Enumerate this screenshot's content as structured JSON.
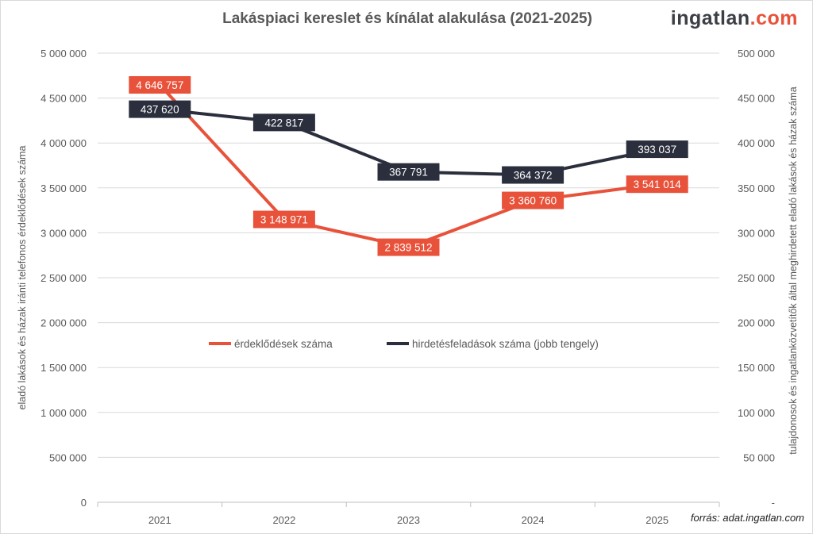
{
  "logo": {
    "main": "ingatlan",
    "accent": ".com"
  },
  "source": "forrás: adat.ingatlan.com",
  "chart_data": {
    "type": "line",
    "title": "Lakáspiaci kereslet és kínálat alakulása (2021-2025)",
    "categories": [
      "2021",
      "2022",
      "2023",
      "2024",
      "2025"
    ],
    "ylabel": "eladó lakások  és házak iránti telefonos érdeklődések száma",
    "y2label": "tulajdonosok és ingatlanközvetítők által meghirdetett eladó lakások és házak száma",
    "ylim": [
      0,
      5000000
    ],
    "y2lim": [
      0,
      500000
    ],
    "yticks": [
      "0",
      "500 000",
      "1 000 000",
      "1 500 000",
      "2 000 000",
      "2 500 000",
      "3 000 000",
      "3 500 000",
      "4 000 000",
      "4 500 000",
      "5 000 000"
    ],
    "y2ticks": [
      "-",
      "50 000",
      "100 000",
      "150 000",
      "200 000",
      "250 000",
      "300 000",
      "350 000",
      "400 000",
      "450 000",
      "500 000"
    ],
    "grid": true,
    "legend": "center",
    "series": [
      {
        "name": "érdeklődések száma",
        "axis": "left",
        "color": "#e8523a",
        "values": [
          4646757,
          3148971,
          2839512,
          3360760,
          3541014
        ],
        "labels": [
          "4 646 757",
          "3 148 971",
          "2 839 512",
          "3 360 760",
          "3 541 014"
        ]
      },
      {
        "name": "hirdetésfeladások száma (jobb tengely)",
        "axis": "right",
        "color": "#2b2f3d",
        "values": [
          437620,
          422817,
          367791,
          364372,
          393037
        ],
        "labels": [
          "437 620",
          "422 817",
          "367 791",
          "364 372",
          "393 037"
        ]
      }
    ]
  }
}
